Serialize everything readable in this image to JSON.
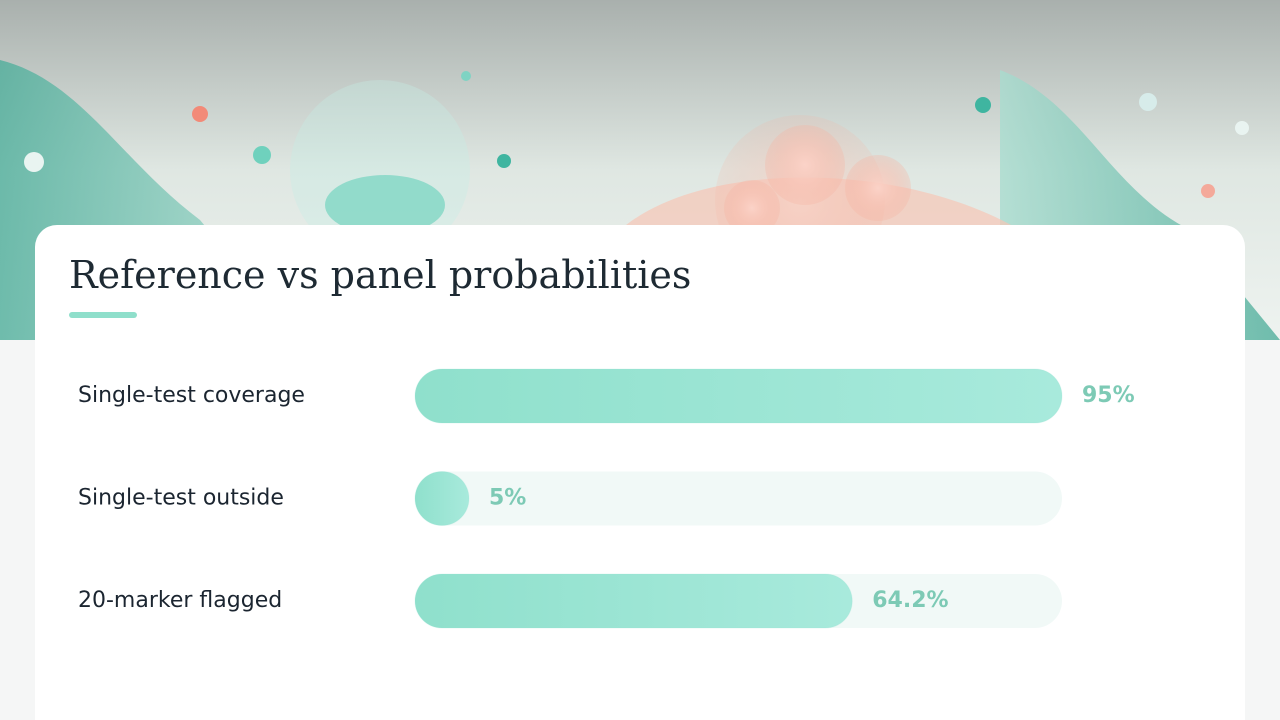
{
  "chart_data": {
    "type": "bar",
    "title": "Reference vs panel probabilities",
    "categories": [
      "Single-test coverage",
      "Single-test outside",
      "20-marker flagged"
    ],
    "values": [
      95,
      5,
      64.2
    ],
    "value_labels": [
      "95%",
      "5%",
      "64.2%"
    ],
    "color": "#94e3d1"
  }
}
